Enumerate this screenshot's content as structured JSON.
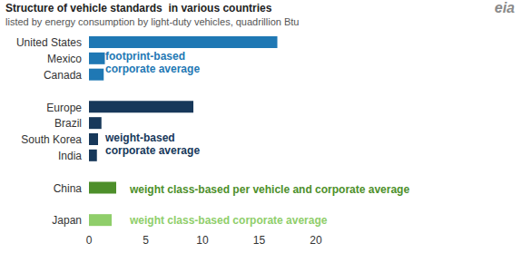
{
  "chart_data": {
    "type": "bar",
    "orientation": "horizontal",
    "title": "Structure of vehicle standards  in various countries",
    "subtitle": "listed by energy consumption by light-duty vehicles, quadrillion Btu",
    "logo": "eia",
    "categories": [
      "United States",
      "Mexico",
      "Canada",
      null,
      "Europe",
      "Brazil",
      "South Korea",
      "India",
      null,
      "China",
      null,
      "Japan"
    ],
    "values": [
      16.6,
      1.4,
      1.3,
      null,
      9.2,
      1.1,
      0.8,
      0.7,
      null,
      2.4,
      null,
      2.0
    ],
    "colors": [
      "#1f78b4",
      "#1f78b4",
      "#1f78b4",
      null,
      "#17385a",
      "#17385a",
      "#17385a",
      "#17385a",
      null,
      "#4d8f2a",
      null,
      "#8fce6a"
    ],
    "xlim": [
      0,
      20
    ],
    "xticks": [
      0,
      5,
      10,
      15,
      20
    ],
    "grid": false,
    "annotations": [
      {
        "text": "footprint-based corporate average",
        "color": "#1f78b4"
      },
      {
        "text": "weight-based corporate average",
        "color": "#17385a"
      },
      {
        "text": "weight class-based per vehicle and corporate average",
        "color": "#4d8f2a"
      },
      {
        "text": "weight class-based corporate average",
        "color": "#8fce6a"
      }
    ]
  }
}
